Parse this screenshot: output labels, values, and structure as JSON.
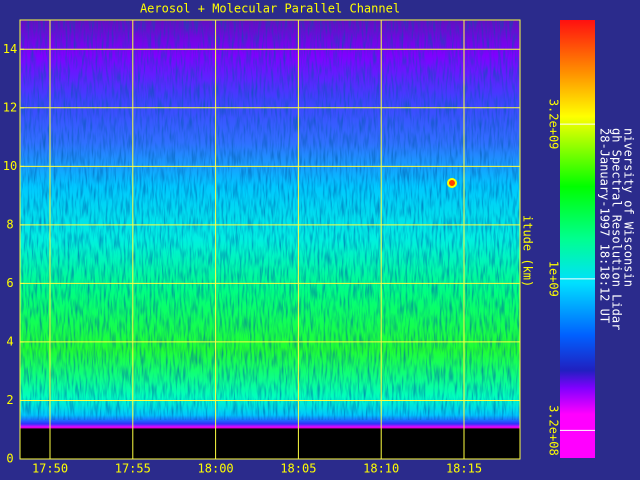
{
  "chart_data": {
    "type": "heatmap",
    "title": "Aerosol + Molecular Parallel Channel",
    "ylabel": "itude (km)",
    "ylim": [
      0,
      15
    ],
    "yticks": [
      0,
      2,
      4,
      6,
      8,
      10,
      12,
      14
    ],
    "xticks": [
      "17:50",
      "17:55",
      "18:00",
      "18:05",
      "18:10",
      "18:15"
    ],
    "grid": true,
    "colorbar": {
      "log": true,
      "lim": [
        260000000,
        7000000000
      ],
      "ticks": [
        {
          "value": 3200000000,
          "label": "3.2e+09"
        },
        {
          "value": 1000000000,
          "label": "1e+09"
        },
        {
          "value": 320000000,
          "label": "3.2e+08"
        }
      ]
    },
    "side_text": [
      "niversity of Wisconsin",
      "gh Spectral Resolution Lidar",
      "28-January-1997 18:18:12 UT"
    ]
  }
}
